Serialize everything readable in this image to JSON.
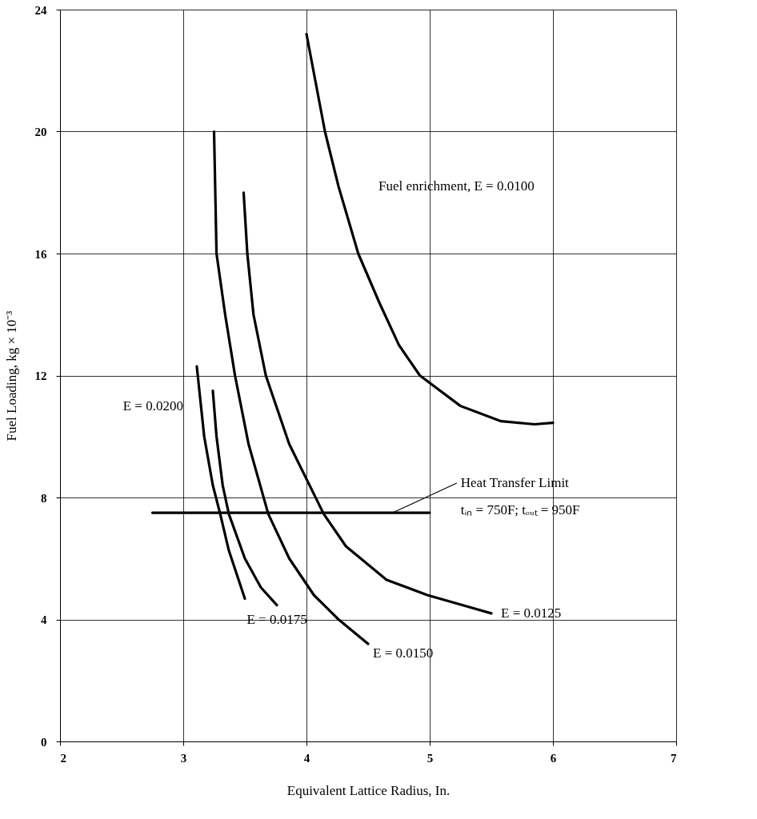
{
  "chart_data": {
    "type": "line",
    "xlabel": "Equivalent Lattice Radius, In.",
    "ylabel": "Fuel Loading, kg × 10⁻³",
    "xlim": [
      2,
      7
    ],
    "xticks": [
      2,
      3,
      4,
      5,
      6,
      7
    ],
    "ylim": [
      0,
      24
    ],
    "yticks": [
      0,
      4,
      8,
      12,
      16,
      20,
      24
    ],
    "grid": true,
    "legend": false,
    "marker": "none",
    "line_style": "solid",
    "series": [
      {
        "name": "Fuel enrichment, E = 0.0100",
        "color": "#000000",
        "x": [
          4.0,
          4.15,
          4.26,
          4.42,
          4.59,
          4.75,
          4.92,
          5.25,
          5.58,
          5.85,
          6.0
        ],
        "values": [
          23.2,
          20.0,
          18.2,
          16.0,
          14.4,
          13.0,
          12.0,
          11.0,
          10.5,
          10.4,
          10.45
        ]
      },
      {
        "name": "E = 0.0125",
        "color": "#000000",
        "x": [
          3.49,
          3.52,
          3.57,
          3.67,
          3.86,
          4.14,
          4.32,
          4.65,
          4.98,
          5.5
        ],
        "values": [
          18.0,
          16.0,
          14.0,
          12.0,
          9.75,
          7.46,
          6.4,
          5.3,
          4.8,
          4.2
        ]
      },
      {
        "name": "E = 0.0150",
        "color": "#000000",
        "x": [
          3.25,
          3.27,
          3.34,
          3.42,
          3.53,
          3.69,
          3.86,
          4.06,
          4.26,
          4.5
        ],
        "values": [
          20.0,
          16.0,
          14.0,
          12.0,
          9.75,
          7.46,
          6.0,
          4.8,
          4.0,
          3.2
        ]
      },
      {
        "name": "E = 0.0175",
        "color": "#000000",
        "x": [
          3.24,
          3.27,
          3.32,
          3.37,
          3.5,
          3.63,
          3.76
        ],
        "values": [
          11.5,
          10.0,
          8.4,
          7.46,
          6.0,
          5.05,
          4.47
        ]
      },
      {
        "name": "E = 0.0200",
        "color": "#000000",
        "x": [
          3.11,
          3.17,
          3.24,
          3.3,
          3.37,
          3.5
        ],
        "values": [
          12.3,
          10.0,
          8.4,
          7.46,
          6.26,
          4.68
        ]
      },
      {
        "color": "#000000",
        "x": [
          2.75,
          5.0
        ],
        "values": [
          7.5,
          7.5
        ]
      }
    ],
    "annotations": [
      {
        "text": "Heat Transfer Limit",
        "x": 4.7,
        "y": 7.5
      },
      "tᵢₙ = 750F;  tₒᵤₜ = 950F"
    ]
  }
}
